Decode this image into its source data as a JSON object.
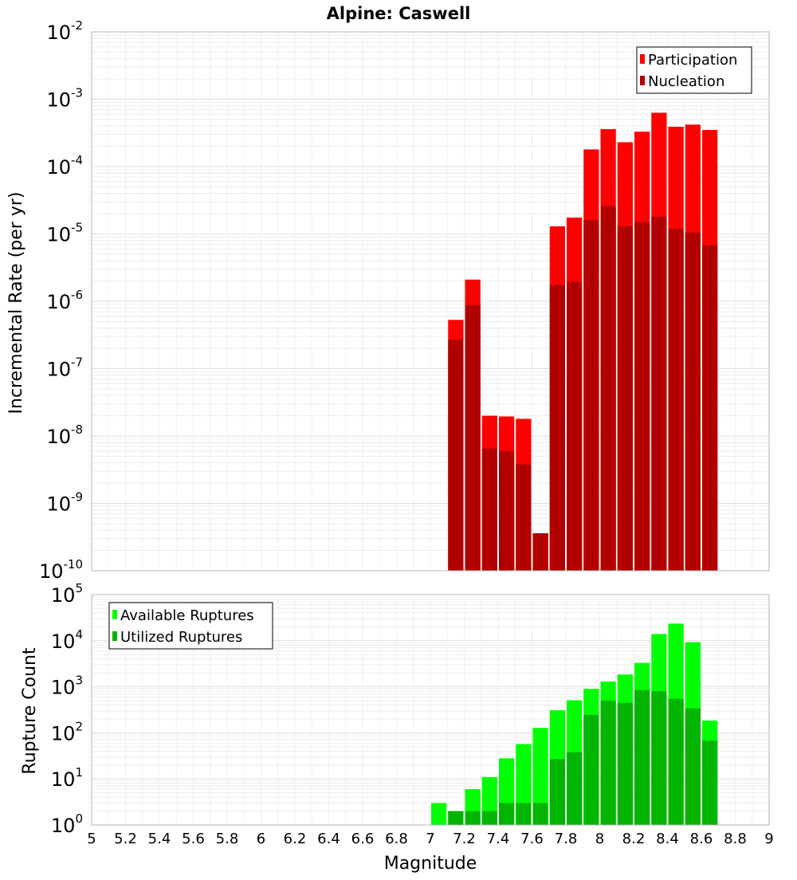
{
  "chart_data": [
    {
      "type": "bar",
      "title": "Alpine: Caswell",
      "xlabel": "",
      "ylabel": "Incremental Rate (per yr)",
      "y_scale": "log",
      "ylim_exponents": [
        -10,
        -2
      ],
      "xlim": [
        5,
        9
      ],
      "bin_width": 0.1,
      "grid": true,
      "legend_position": "top-right",
      "bar_mode": "overlaid",
      "x": [
        7.15,
        7.25,
        7.35,
        7.45,
        7.55,
        7.65,
        7.75,
        7.85,
        7.95,
        8.05,
        8.15,
        8.25,
        8.35,
        8.45,
        8.55,
        8.65
      ],
      "series": [
        {
          "name": "Participation",
          "color": "#ff0000",
          "values": [
            5.3e-07,
            2.1e-06,
            2e-08,
            1.95e-08,
            1.8e-08,
            3.6e-10,
            1.3e-05,
            1.75e-05,
            0.00018,
            0.00036,
            0.00023,
            0.00033,
            0.00063,
            0.00039,
            0.00042,
            0.00035
          ]
        },
        {
          "name": "Nucleation",
          "color": "#b20000",
          "values": [
            2.7e-07,
            8.8e-07,
            6.5e-09,
            6e-09,
            3.8e-09,
            3.6e-10,
            1.75e-06,
            1.95e-06,
            1.6e-05,
            2.6e-05,
            1.3e-05,
            1.5e-05,
            1.8e-05,
            1.2e-05,
            1.05e-05,
            6.8e-06
          ]
        }
      ]
    },
    {
      "type": "bar",
      "title": "",
      "xlabel": "Magnitude",
      "ylabel": "Rupture Count",
      "y_scale": "log",
      "ylim_exponents": [
        0,
        5
      ],
      "xlim": [
        5,
        9
      ],
      "bin_width": 0.1,
      "grid": true,
      "legend_position": "top-left",
      "bar_mode": "overlaid",
      "x_ticks": [
        "5",
        "5.2",
        "5.4",
        "5.6",
        "5.8",
        "6",
        "6.2",
        "6.4",
        "6.6",
        "6.8",
        "7",
        "7.2",
        "7.4",
        "7.6",
        "7.8",
        "8",
        "8.2",
        "8.4",
        "8.6",
        "8.8",
        "9"
      ],
      "x": [
        6.95,
        7.05,
        7.15,
        7.25,
        7.35,
        7.45,
        7.55,
        7.65,
        7.75,
        7.85,
        7.95,
        8.05,
        8.15,
        8.25,
        8.35,
        8.45,
        8.55,
        8.65
      ],
      "series": [
        {
          "name": "Available Ruptures",
          "color": "#00ff00",
          "values": [
            1,
            3,
            2,
            6,
            11,
            28,
            57,
            128,
            310,
            510,
            900,
            1300,
            1850,
            3300,
            14000,
            23500,
            9300,
            185
          ]
        },
        {
          "name": "Utilized Ruptures",
          "color": "#00b400",
          "values": [
            0,
            0,
            2,
            2,
            2,
            3,
            3,
            3,
            27,
            38,
            245,
            500,
            450,
            850,
            800,
            550,
            340,
            68
          ]
        }
      ]
    }
  ]
}
